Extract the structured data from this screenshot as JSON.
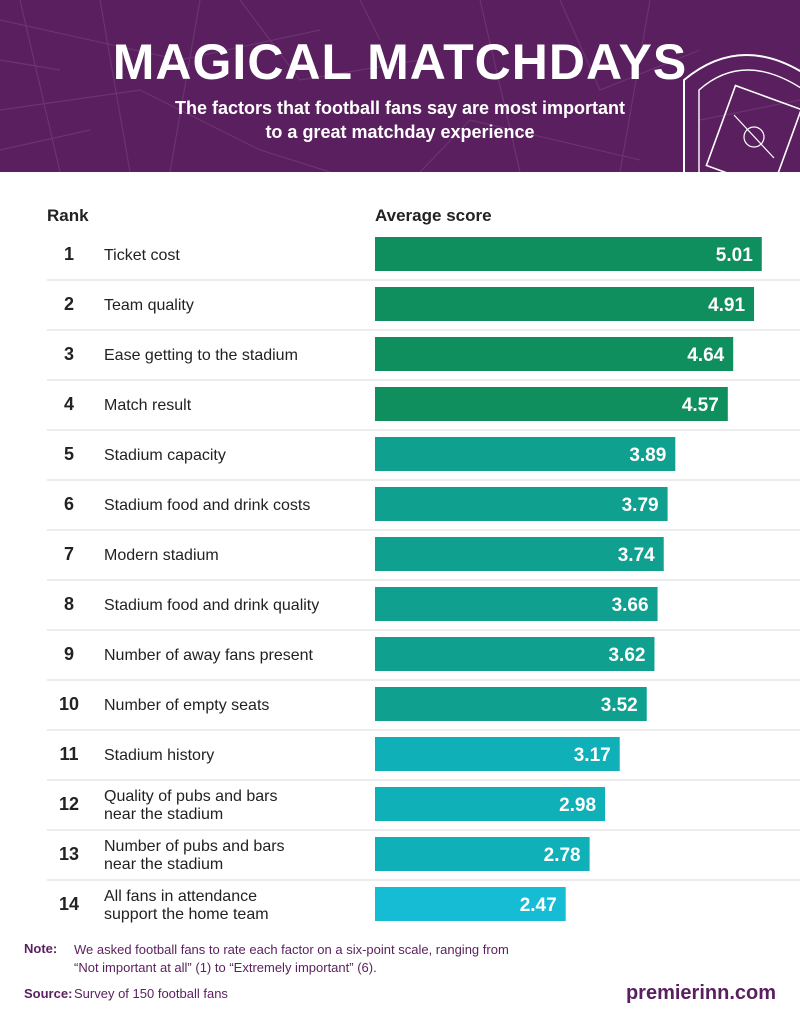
{
  "header": {
    "title": "MAGICAL MATCHDAYS",
    "subtitle_lines": [
      "The factors that football fans say are most important",
      "to a great matchday experience"
    ]
  },
  "columns": {
    "rank": "Rank",
    "score": "Average score"
  },
  "chart_data": {
    "type": "bar",
    "orientation": "horizontal",
    "title": "MAGICAL MATCHDAYS",
    "xlabel": "Average score",
    "scale_max": 6,
    "rows": [
      {
        "rank": "1",
        "lines": [
          "Ticket cost"
        ],
        "value": 5.01,
        "label": "5.01",
        "color": "#0f8f5d"
      },
      {
        "rank": "2",
        "lines": [
          "Team quality"
        ],
        "value": 4.91,
        "label": "4.91",
        "color": "#0f8f5d"
      },
      {
        "rank": "3",
        "lines": [
          "Ease getting to the stadium"
        ],
        "value": 4.64,
        "label": "4.64",
        "color": "#0f8f5d"
      },
      {
        "rank": "4",
        "lines": [
          "Match result"
        ],
        "value": 4.57,
        "label": "4.57",
        "color": "#0f8f5d"
      },
      {
        "rank": "5",
        "lines": [
          "Stadium capacity"
        ],
        "value": 3.89,
        "label": "3.89",
        "color": "#0fa08f"
      },
      {
        "rank": "6",
        "lines": [
          "Stadium food and drink costs"
        ],
        "value": 3.79,
        "label": "3.79",
        "color": "#0fa08f"
      },
      {
        "rank": "7",
        "lines": [
          "Modern stadium"
        ],
        "value": 3.74,
        "label": "3.74",
        "color": "#0fa08f"
      },
      {
        "rank": "8",
        "lines": [
          "Stadium food and drink quality"
        ],
        "value": 3.66,
        "label": "3.66",
        "color": "#0fa08f"
      },
      {
        "rank": "9",
        "lines": [
          "Number of away fans present"
        ],
        "value": 3.62,
        "label": "3.62",
        "color": "#0fa08f"
      },
      {
        "rank": "10",
        "lines": [
          "Number of empty seats"
        ],
        "value": 3.52,
        "label": "3.52",
        "color": "#0fa08f"
      },
      {
        "rank": "11",
        "lines": [
          "Stadium history"
        ],
        "value": 3.17,
        "label": "3.17",
        "color": "#0fb0b8"
      },
      {
        "rank": "12",
        "lines": [
          "Quality of pubs and bars",
          "near the stadium"
        ],
        "value": 2.98,
        "label": "2.98",
        "color": "#0fb0b8"
      },
      {
        "rank": "13",
        "lines": [
          "Number of pubs and bars",
          "near the stadium"
        ],
        "value": 2.78,
        "label": "2.78",
        "color": "#0fb0b8"
      },
      {
        "rank": "14",
        "lines": [
          "All fans in attendance",
          "support the home team"
        ],
        "value": 2.47,
        "label": "2.47",
        "color": "#16bcd4"
      }
    ]
  },
  "footer": {
    "note_label": "Note:",
    "note_text": "We asked football fans to rate each factor on a six-point scale, ranging from “Not important at all” (1) to “Extremely important” (6).",
    "source_label": "Source:",
    "source_text": "Survey of 150 football fans",
    "brand": "premierinn.com"
  },
  "colors": {
    "header_bg": "#5a1f5e",
    "divider": "#d9d9d9"
  }
}
